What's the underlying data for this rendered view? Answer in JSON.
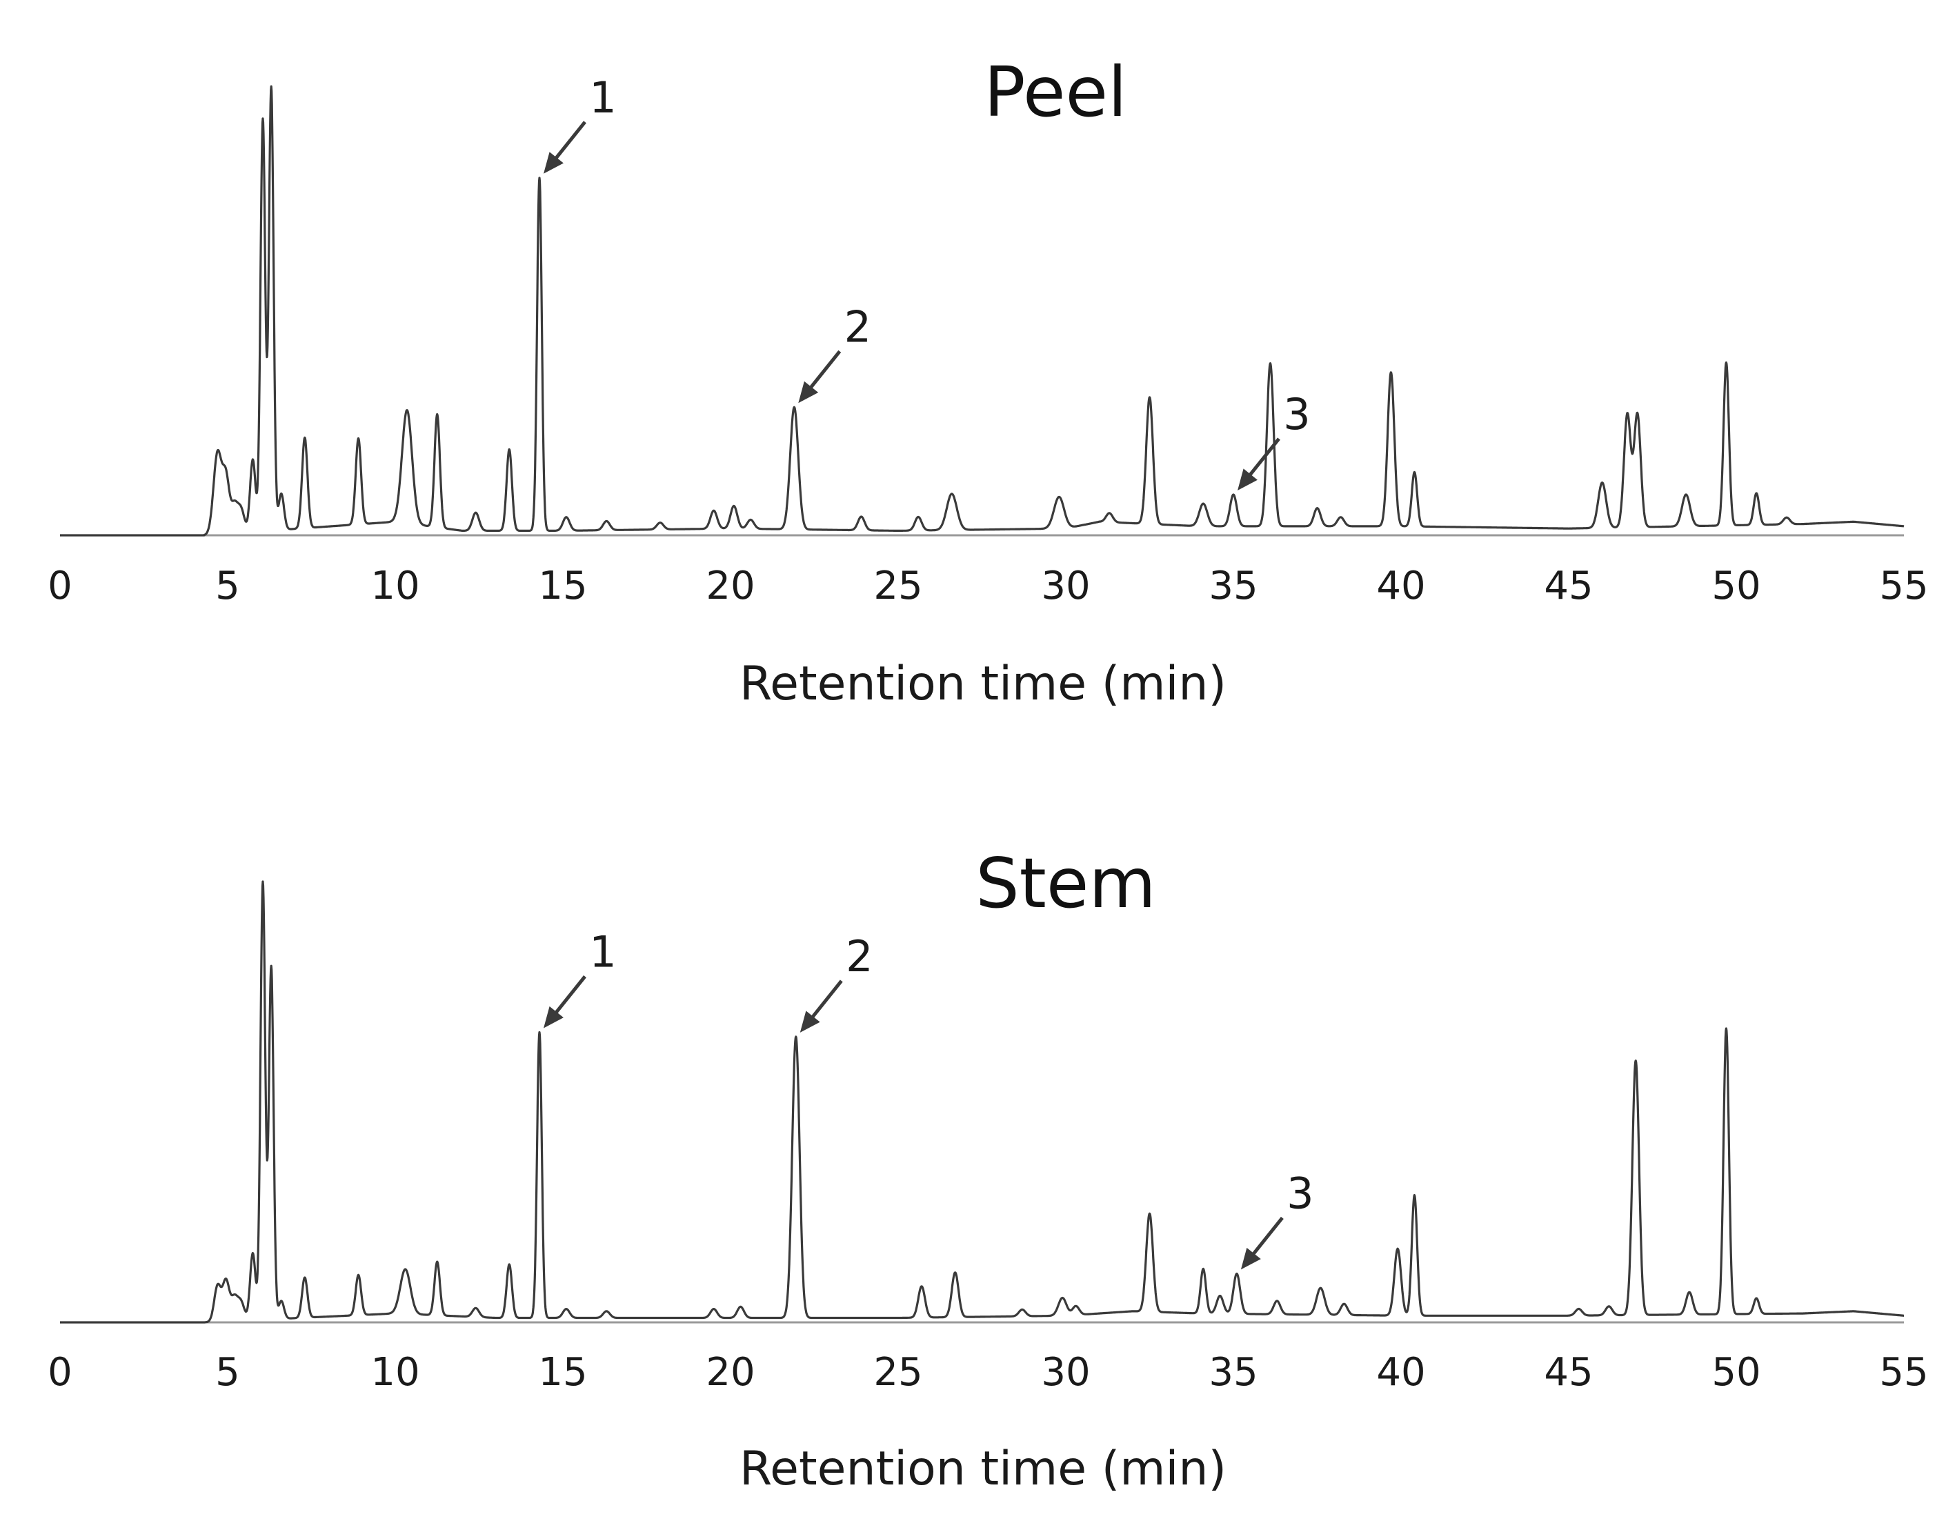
{
  "chart_data": [
    {
      "type": "line",
      "title": "Peel",
      "xlabel": "Retention time (min)",
      "ylabel": "",
      "xlim": [
        0,
        55
      ],
      "ylim": [
        0,
        100
      ],
      "grid": false,
      "xticks": [
        "0",
        "5",
        "10",
        "15",
        "20",
        "25",
        "30",
        "35",
        "40",
        "45",
        "50",
        "55"
      ],
      "baseline": [
        [
          4.3,
          0
        ],
        [
          10,
          3
        ],
        [
          12,
          1
        ],
        [
          15,
          1
        ],
        [
          20,
          1.5
        ],
        [
          25,
          1
        ],
        [
          30,
          1.5
        ],
        [
          31,
          3
        ],
        [
          34,
          2
        ],
        [
          40,
          2
        ],
        [
          45,
          1.5
        ],
        [
          52,
          2.5
        ],
        [
          53.5,
          3
        ],
        [
          55,
          2
        ]
      ],
      "peaks": [
        {
          "rt": 4.7,
          "height": 18,
          "width": 0.12
        },
        {
          "rt": 4.95,
          "height": 12,
          "width": 0.1
        },
        {
          "rt": 5.2,
          "height": 6,
          "width": 0.1
        },
        {
          "rt": 5.4,
          "height": 5,
          "width": 0.1
        },
        {
          "rt": 5.75,
          "height": 16,
          "width": 0.08
        },
        {
          "rt": 6.05,
          "height": 91,
          "width": 0.07
        },
        {
          "rt": 6.3,
          "height": 98,
          "width": 0.07
        },
        {
          "rt": 6.6,
          "height": 8,
          "width": 0.08
        },
        {
          "rt": 7.3,
          "height": 20,
          "width": 0.08
        },
        {
          "rt": 8.9,
          "height": 19,
          "width": 0.08
        },
        {
          "rt": 10.35,
          "height": 25,
          "width": 0.15
        },
        {
          "rt": 11.25,
          "height": 25,
          "width": 0.08
        },
        {
          "rt": 12.4,
          "height": 4,
          "width": 0.1
        },
        {
          "rt": 13.4,
          "height": 18,
          "width": 0.08
        },
        {
          "rt": 14.3,
          "height": 78,
          "width": 0.07
        },
        {
          "rt": 15.1,
          "height": 3,
          "width": 0.1
        },
        {
          "rt": 16.3,
          "height": 2,
          "width": 0.1
        },
        {
          "rt": 17.9,
          "height": 1.5,
          "width": 0.1
        },
        {
          "rt": 19.5,
          "height": 4,
          "width": 0.1
        },
        {
          "rt": 20.1,
          "height": 5,
          "width": 0.1
        },
        {
          "rt": 20.6,
          "height": 2,
          "width": 0.1
        },
        {
          "rt": 21.9,
          "height": 27,
          "width": 0.12
        },
        {
          "rt": 23.9,
          "height": 3,
          "width": 0.1
        },
        {
          "rt": 25.6,
          "height": 3,
          "width": 0.1
        },
        {
          "rt": 26.6,
          "height": 8,
          "width": 0.15
        },
        {
          "rt": 29.8,
          "height": 7,
          "width": 0.15
        },
        {
          "rt": 31.3,
          "height": 2,
          "width": 0.1
        },
        {
          "rt": 32.5,
          "height": 28,
          "width": 0.1
        },
        {
          "rt": 34.1,
          "height": 5,
          "width": 0.12
        },
        {
          "rt": 35.0,
          "height": 7,
          "width": 0.1
        },
        {
          "rt": 36.1,
          "height": 36,
          "width": 0.1
        },
        {
          "rt": 37.5,
          "height": 4,
          "width": 0.1
        },
        {
          "rt": 38.2,
          "height": 2,
          "width": 0.1
        },
        {
          "rt": 39.7,
          "height": 34,
          "width": 0.1
        },
        {
          "rt": 40.4,
          "height": 12,
          "width": 0.08
        },
        {
          "rt": 46.0,
          "height": 10,
          "width": 0.12
        },
        {
          "rt": 46.75,
          "height": 25,
          "width": 0.1
        },
        {
          "rt": 47.05,
          "height": 25,
          "width": 0.1
        },
        {
          "rt": 48.5,
          "height": 7,
          "width": 0.12
        },
        {
          "rt": 49.7,
          "height": 36,
          "width": 0.08
        },
        {
          "rt": 50.6,
          "height": 7,
          "width": 0.08
        },
        {
          "rt": 51.5,
          "height": 1.5,
          "width": 0.1
        }
      ],
      "annotations": [
        {
          "label": "1",
          "rt": 14.3
        },
        {
          "label": "2",
          "rt": 21.9
        },
        {
          "label": "3",
          "rt": 35.0
        }
      ]
    },
    {
      "type": "line",
      "title": "Stem",
      "xlabel": "Retention time (min)",
      "ylabel": "",
      "xlim": [
        0,
        55
      ],
      "ylim": [
        0,
        100
      ],
      "grid": false,
      "xticks": [
        "0",
        "5",
        "10",
        "15",
        "20",
        "25",
        "30",
        "35",
        "40",
        "45",
        "50",
        "55"
      ],
      "baseline": [
        [
          4.3,
          0
        ],
        [
          10,
          2
        ],
        [
          13,
          1
        ],
        [
          20,
          1
        ],
        [
          25,
          1
        ],
        [
          30,
          1.5
        ],
        [
          32,
          2.5
        ],
        [
          34,
          2
        ],
        [
          40,
          1.5
        ],
        [
          45,
          1.5
        ],
        [
          52,
          2
        ],
        [
          53.5,
          2.5
        ],
        [
          55,
          1.5
        ]
      ],
      "peaks": [
        {
          "rt": 4.7,
          "height": 8,
          "width": 0.1
        },
        {
          "rt": 4.95,
          "height": 9,
          "width": 0.1
        },
        {
          "rt": 5.2,
          "height": 5,
          "width": 0.1
        },
        {
          "rt": 5.4,
          "height": 4,
          "width": 0.1
        },
        {
          "rt": 5.75,
          "height": 15,
          "width": 0.08
        },
        {
          "rt": 6.05,
          "height": 98,
          "width": 0.07
        },
        {
          "rt": 6.3,
          "height": 79,
          "width": 0.07
        },
        {
          "rt": 6.6,
          "height": 4,
          "width": 0.08
        },
        {
          "rt": 7.3,
          "height": 9,
          "width": 0.08
        },
        {
          "rt": 8.9,
          "height": 9,
          "width": 0.08
        },
        {
          "rt": 10.3,
          "height": 10,
          "width": 0.15
        },
        {
          "rt": 11.25,
          "height": 12,
          "width": 0.08
        },
        {
          "rt": 12.4,
          "height": 2,
          "width": 0.1
        },
        {
          "rt": 13.4,
          "height": 12,
          "width": 0.08
        },
        {
          "rt": 14.3,
          "height": 64,
          "width": 0.07
        },
        {
          "rt": 15.1,
          "height": 2,
          "width": 0.1
        },
        {
          "rt": 16.3,
          "height": 1.5,
          "width": 0.1
        },
        {
          "rt": 19.5,
          "height": 2,
          "width": 0.1
        },
        {
          "rt": 20.3,
          "height": 2.5,
          "width": 0.1
        },
        {
          "rt": 21.95,
          "height": 63,
          "width": 0.11
        },
        {
          "rt": 25.7,
          "height": 7,
          "width": 0.1
        },
        {
          "rt": 26.7,
          "height": 10,
          "width": 0.1
        },
        {
          "rt": 28.7,
          "height": 1.5,
          "width": 0.1
        },
        {
          "rt": 29.9,
          "height": 4,
          "width": 0.12
        },
        {
          "rt": 30.3,
          "height": 2,
          "width": 0.1
        },
        {
          "rt": 32.5,
          "height": 22,
          "width": 0.1
        },
        {
          "rt": 34.1,
          "height": 10,
          "width": 0.08
        },
        {
          "rt": 34.6,
          "height": 4,
          "width": 0.1
        },
        {
          "rt": 35.1,
          "height": 9,
          "width": 0.1
        },
        {
          "rt": 36.3,
          "height": 3,
          "width": 0.1
        },
        {
          "rt": 37.6,
          "height": 6,
          "width": 0.12
        },
        {
          "rt": 38.3,
          "height": 2.5,
          "width": 0.1
        },
        {
          "rt": 39.9,
          "height": 15,
          "width": 0.1
        },
        {
          "rt": 40.4,
          "height": 27,
          "width": 0.08
        },
        {
          "rt": 45.3,
          "height": 1.5,
          "width": 0.1
        },
        {
          "rt": 46.2,
          "height": 2,
          "width": 0.1
        },
        {
          "rt": 47.0,
          "height": 57,
          "width": 0.1
        },
        {
          "rt": 48.6,
          "height": 5,
          "width": 0.1
        },
        {
          "rt": 49.7,
          "height": 64,
          "width": 0.08
        },
        {
          "rt": 50.6,
          "height": 3.5,
          "width": 0.08
        }
      ],
      "annotations": [
        {
          "label": "1",
          "rt": 14.3
        },
        {
          "label": "2",
          "rt": 21.95
        },
        {
          "label": "3",
          "rt": 35.1
        }
      ]
    }
  ]
}
